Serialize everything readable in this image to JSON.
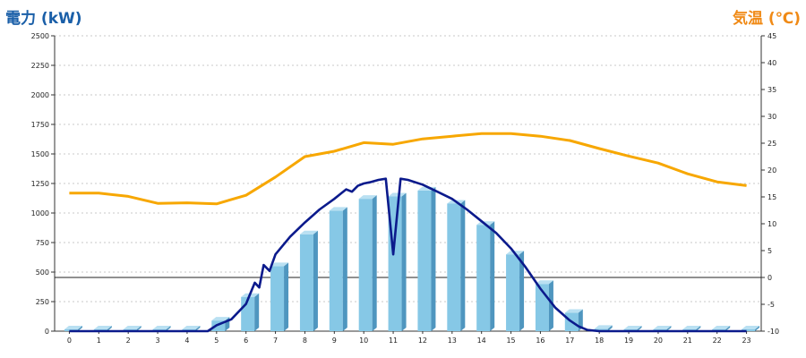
{
  "chart_data": {
    "type": "bar",
    "left_axis_title": "電力 (kW)",
    "right_axis_title": "気温 (℃)",
    "x": [
      "0",
      "1",
      "2",
      "3",
      "4",
      "5",
      "6",
      "7",
      "8",
      "9",
      "10",
      "11",
      "12",
      "13",
      "14",
      "15",
      "16",
      "17",
      "18",
      "19",
      "20",
      "21",
      "22",
      "23"
    ],
    "y_left_range": [
      0,
      2500
    ],
    "y_left_ticks": [
      "0",
      "250",
      "500",
      "750",
      "1000",
      "1250",
      "1500",
      "1750",
      "2000",
      "2250",
      "2500"
    ],
    "y_right_range": [
      -10,
      45
    ],
    "y_right_ticks": [
      "-10",
      "-5",
      "0",
      "5",
      "10",
      "15",
      "20",
      "25",
      "30",
      "35",
      "40",
      "45"
    ],
    "grid": true,
    "series": [
      {
        "type": "bar",
        "axis": "left",
        "values": [
          15,
          15,
          15,
          15,
          15,
          90,
          290,
          550,
          820,
          1020,
          1120,
          1140,
          1190,
          1080,
          900,
          650,
          400,
          155,
          20,
          15,
          15,
          15,
          15,
          15
        ]
      },
      {
        "type": "line",
        "axis": "left",
        "x": [
          0,
          4.7,
          5,
          5.5,
          6,
          6.3,
          6.45,
          6.6,
          6.8,
          7,
          7.5,
          8,
          8.5,
          9,
          9.2,
          9.4,
          9.6,
          9.8,
          10,
          10.2,
          10.5,
          10.75,
          11,
          11.25,
          11.5,
          12,
          12.5,
          13,
          13.5,
          14,
          14.5,
          15,
          15.5,
          16,
          16.5,
          17,
          17.3,
          17.6,
          18,
          23
        ],
        "values": [
          0,
          0,
          50,
          100,
          230,
          410,
          370,
          560,
          510,
          650,
          800,
          920,
          1030,
          1120,
          1160,
          1200,
          1180,
          1230,
          1250,
          1260,
          1280,
          1290,
          650,
          1290,
          1280,
          1240,
          1180,
          1120,
          1030,
          930,
          830,
          700,
          540,
          360,
          200,
          90,
          40,
          10,
          0,
          0
        ]
      },
      {
        "type": "line",
        "axis": "right",
        "values": [
          15.7,
          15.7,
          15.1,
          13.8,
          13.9,
          13.7,
          15.3,
          18.7,
          22.5,
          23.5,
          25.1,
          24.8,
          25.8,
          26.3,
          26.8,
          26.8,
          26.3,
          25.5,
          24.0,
          22.6,
          21.3,
          19.3,
          17.8,
          17.1
        ]
      }
    ],
    "colors": {
      "bar_front": "#86c8e6",
      "bar_side": "#4f96bf",
      "bar_top": "#b9e0f2",
      "power_line": "#0b1a8c",
      "temp_line": "#f7a700"
    }
  }
}
